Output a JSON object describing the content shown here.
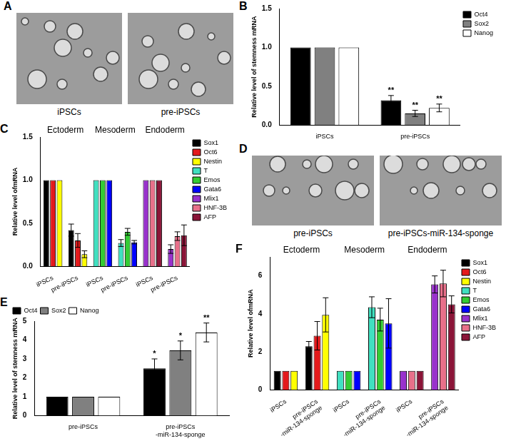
{
  "chart_data": [
    {
      "panel": "B",
      "type": "bar",
      "y_label": "Relative level of stemness mRNA",
      "categories": [
        "iPSCs",
        "pre-iPSCs"
      ],
      "series": [
        {
          "name": "Oct4",
          "color": "#000000",
          "values": [
            1,
            0.32
          ],
          "errors": [
            null,
            0.06
          ],
          "significance": [
            null,
            "**"
          ]
        },
        {
          "name": "Sox2",
          "color": "#808080",
          "values": [
            1,
            0.15
          ],
          "errors": [
            null,
            0.04
          ],
          "significance": [
            null,
            "**"
          ]
        },
        {
          "name": "Nanog",
          "color": "#ffffff",
          "values": [
            1,
            0.22
          ],
          "errors": [
            null,
            0.05
          ],
          "significance": [
            null,
            "**"
          ]
        }
      ],
      "ylim": [
        0,
        1.5
      ],
      "yticks": [
        {
          "value": 0,
          "label": "0.0"
        },
        {
          "value": 0.5,
          "label": "0.5"
        },
        {
          "value": 1,
          "label": "1.0"
        },
        {
          "value": 1.5,
          "label": "1.5"
        }
      ],
      "grid": false,
      "legend": "upper right"
    },
    {
      "panel": "C",
      "type": "bar",
      "y_label": "Relative level ofmRNA",
      "group_labels": [
        "Ectoderm",
        "Mesoderm",
        "Endoderm"
      ],
      "categories": [
        "iPSCs",
        "pre-iPSCs",
        "iPSCs",
        "pre-iPSCs",
        "iPSCs",
        "pre-iPSCs"
      ],
      "series": [
        {
          "name": "Sox1",
          "color": "#000000",
          "values": [
            1,
            0.42,
            null,
            null,
            null,
            null
          ],
          "errors": [
            null,
            0.07,
            null,
            null,
            null,
            null
          ]
        },
        {
          "name": "Oct6",
          "color": "#e41a1c",
          "values": [
            1,
            0.3,
            null,
            null,
            null,
            null
          ],
          "errors": [
            null,
            0.08,
            null,
            null,
            null,
            null
          ]
        },
        {
          "name": "Nestin",
          "color": "#ffff00",
          "values": [
            1,
            0.14,
            null,
            null,
            null,
            null
          ],
          "errors": [
            null,
            0.04,
            null,
            null,
            null,
            null
          ]
        },
        {
          "name": "T",
          "color": "#40e0c0",
          "values": [
            null,
            null,
            1,
            0.27,
            null,
            null
          ],
          "errors": [
            null,
            null,
            null,
            0.04,
            null,
            null
          ]
        },
        {
          "name": "Emos",
          "color": "#33cc33",
          "values": [
            null,
            null,
            1,
            0.4,
            null,
            null
          ],
          "errors": [
            null,
            null,
            null,
            0.04,
            null,
            null
          ]
        },
        {
          "name": "Gata6",
          "color": "#0000ff",
          "values": [
            null,
            null,
            1,
            0.28,
            null,
            null
          ],
          "errors": [
            null,
            null,
            null,
            0.02,
            null,
            null
          ]
        },
        {
          "name": "Mlix1",
          "color": "#9932cc",
          "values": [
            null,
            null,
            null,
            null,
            1,
            0.2
          ],
          "errors": [
            null,
            null,
            null,
            null,
            null,
            0.05
          ]
        },
        {
          "name": "HNF-3B",
          "color": "#e8708a",
          "values": [
            null,
            null,
            null,
            null,
            1,
            0.35
          ],
          "errors": [
            null,
            null,
            null,
            null,
            null,
            0.05
          ]
        },
        {
          "name": "AFP",
          "color": "#8b1538",
          "values": [
            null,
            null,
            null,
            null,
            1,
            0.36
          ],
          "errors": [
            null,
            null,
            null,
            null,
            null,
            0.12
          ]
        }
      ],
      "ylim": [
        0,
        1.5
      ],
      "yticks": [
        {
          "value": 0,
          "label": "0.0"
        },
        {
          "value": 0.5,
          "label": "0.5"
        },
        {
          "value": 1,
          "label": "1.0"
        },
        {
          "value": 1.5,
          "label": "1.5"
        }
      ],
      "grid": false,
      "legend": "upper right"
    },
    {
      "panel": "E",
      "type": "bar",
      "y_label": "Relative level of stemness mRNA",
      "categories": [
        "pre-iPSCs",
        "pre-iPSCs-miR-134-sponge"
      ],
      "series": [
        {
          "name": "Oct4",
          "color": "#000000",
          "values": [
            1,
            2.5
          ],
          "errors": [
            null,
            0.5
          ],
          "significance": [
            null,
            "*"
          ]
        },
        {
          "name": "Sox2",
          "color": "#808080",
          "values": [
            1,
            3.45
          ],
          "errors": [
            null,
            0.5
          ],
          "significance": [
            null,
            "*"
          ]
        },
        {
          "name": "Nanog",
          "color": "#ffffff",
          "values": [
            1,
            4.4
          ],
          "errors": [
            null,
            0.5
          ],
          "significance": [
            null,
            "**"
          ]
        }
      ],
      "ylim": [
        0,
        5
      ],
      "yticks": [
        0,
        1,
        2,
        3,
        4,
        5
      ],
      "grid": false,
      "legend": "upper left"
    },
    {
      "panel": "F",
      "type": "bar",
      "y_label": "Relative level ofmRNA",
      "group_labels": [
        "Ectoderm",
        "Mesoderm",
        "Endoderm"
      ],
      "categories": [
        "iPSCs",
        "pre-iPSCs-miR-134-sponge",
        "iPSCs",
        "pre-iPSCs-miR-134-sponge",
        "iPSCs",
        "pre-iPSCs-miR-134-sponge"
      ],
      "series": [
        {
          "name": "Sox1",
          "color": "#000000",
          "values": [
            1,
            2.3,
            null,
            null,
            null,
            null
          ],
          "errors": [
            null,
            0.25,
            null,
            null,
            null,
            null
          ]
        },
        {
          "name": "Oct6",
          "color": "#e41a1c",
          "values": [
            1,
            2.85,
            null,
            null,
            null,
            null
          ],
          "errors": [
            null,
            0.75,
            null,
            null,
            null,
            null
          ]
        },
        {
          "name": "Nestin",
          "color": "#ffff00",
          "values": [
            1,
            3.95,
            null,
            null,
            null,
            null
          ],
          "errors": [
            null,
            0.9,
            null,
            null,
            null,
            null
          ]
        },
        {
          "name": "T",
          "color": "#40e0c0",
          "values": [
            null,
            null,
            1,
            4.35,
            null,
            null
          ],
          "errors": [
            null,
            null,
            null,
            0.55,
            null,
            null
          ]
        },
        {
          "name": "Emos",
          "color": "#33cc33",
          "values": [
            null,
            null,
            1,
            3.7,
            null,
            null
          ],
          "errors": [
            null,
            null,
            null,
            0.6,
            null,
            null
          ]
        },
        {
          "name": "Gata6",
          "color": "#0000ff",
          "values": [
            null,
            null,
            1,
            3.5,
            null,
            null
          ],
          "errors": [
            null,
            null,
            null,
            1.3,
            null,
            null
          ]
        },
        {
          "name": "Mlix1",
          "color": "#9932cc",
          "values": [
            null,
            null,
            null,
            null,
            1,
            5.55
          ],
          "errors": [
            null,
            null,
            null,
            null,
            null,
            0.45
          ]
        },
        {
          "name": "HNF-3B",
          "color": "#e8708a",
          "values": [
            null,
            null,
            null,
            null,
            1,
            5.6
          ],
          "errors": [
            null,
            null,
            null,
            null,
            null,
            0.7
          ]
        },
        {
          "name": "AFP",
          "color": "#8b1538",
          "values": [
            null,
            null,
            null,
            null,
            1,
            4.5
          ],
          "errors": [
            null,
            null,
            null,
            null,
            null,
            0.45
          ]
        }
      ],
      "ylim": [
        0,
        7
      ],
      "yticks": [
        0,
        2,
        4,
        6
      ],
      "grid": false,
      "legend": "upper right"
    }
  ],
  "images": [
    {
      "panel": "A",
      "labels": [
        "iPSCs",
        "pre-iPSCs"
      ]
    },
    {
      "panel": "D",
      "labels": [
        "pre-iPSCs",
        "pre-iPSCs-miR-134-sponge"
      ]
    }
  ]
}
